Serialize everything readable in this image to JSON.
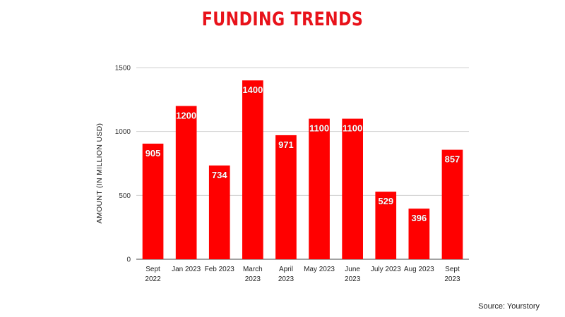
{
  "chart_data": {
    "type": "bar",
    "title": "FUNDING TRENDS",
    "ylabel": "AMOUNT (IN MILLION USD)",
    "xlabel": "",
    "ylim": [
      0,
      1500
    ],
    "yticks": [
      0,
      500,
      1000,
      1500
    ],
    "grid": true,
    "bar_color": "#ff0000",
    "title_color": "#e8121a",
    "categories": [
      [
        "Sept",
        "2022"
      ],
      [
        "Jan 2023"
      ],
      [
        "Feb 2023"
      ],
      [
        "March",
        "2023"
      ],
      [
        "April",
        "2023"
      ],
      [
        "May 2023"
      ],
      [
        "June",
        "2023"
      ],
      [
        "July 2023"
      ],
      [
        "Aug 2023"
      ],
      [
        "Sept",
        "2023"
      ]
    ],
    "values": [
      905,
      1200,
      734,
      1400,
      971,
      1100,
      1100,
      529,
      396,
      857
    ],
    "data_labels": [
      "905",
      "1200",
      "734",
      "1400",
      "971",
      "1100",
      "1100",
      "529",
      "396",
      "857"
    ]
  },
  "source": "Source: Yourstory"
}
